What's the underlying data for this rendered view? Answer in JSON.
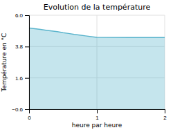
{
  "chart_data": {
    "type": "area",
    "title": "Evolution de la température",
    "xlabel": "heure par heure",
    "ylabel": "Température en °C",
    "x": [
      0.0,
      0.083,
      0.167,
      0.25,
      0.333,
      0.417,
      0.5,
      0.583,
      0.667,
      0.75,
      0.833,
      0.917,
      1.0,
      1.5,
      2.0
    ],
    "values": [
      5.1,
      5.05,
      5.0,
      4.95,
      4.9,
      4.85,
      4.78,
      4.72,
      4.65,
      4.6,
      4.55,
      4.5,
      4.45,
      4.44,
      4.44
    ],
    "color": "#5ab4cc",
    "xlim": [
      0,
      2
    ],
    "ylim": [
      -0.6,
      6.0
    ],
    "xticks": [
      0,
      1,
      2
    ],
    "yticks": [
      {
        "value": -0.6,
        "label": "−0.6"
      },
      1.6,
      3.8,
      {
        "value": 6.0,
        "label": "6.0"
      }
    ],
    "grid": true
  }
}
